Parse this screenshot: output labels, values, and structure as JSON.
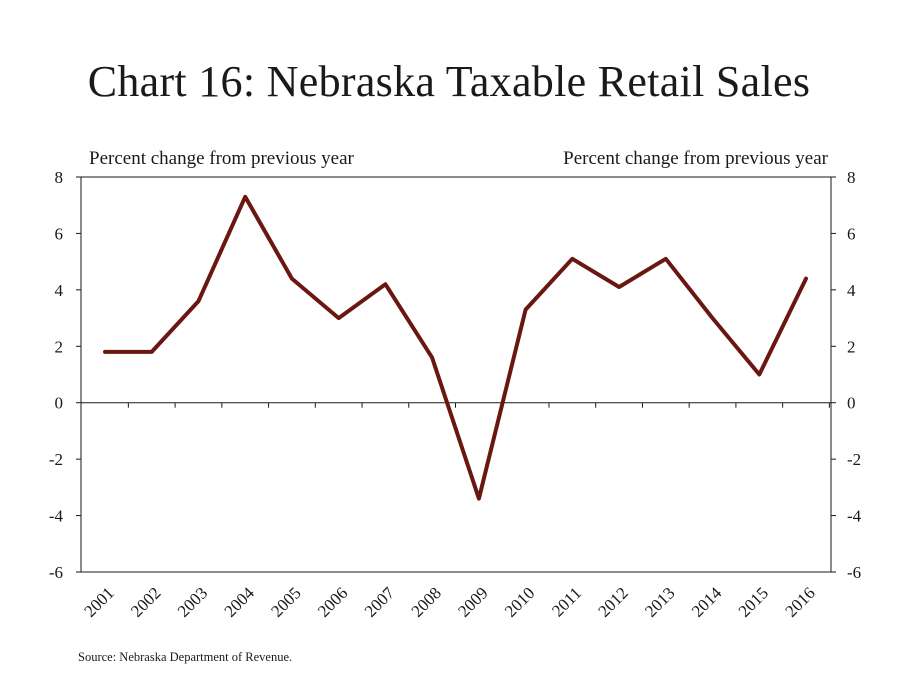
{
  "chart_data": {
    "type": "line",
    "title": "Chart 16: Nebraska Taxable Retail Sales",
    "ylabel_left": "Percent change from previous year",
    "ylabel_right": "Percent change from previous year",
    "ylim": [
      -6,
      8
    ],
    "yticks": [
      "8",
      "6",
      "4",
      "2",
      "0",
      "-2",
      "-4",
      "-6"
    ],
    "categories": [
      "2001",
      "2002",
      "2003",
      "2004",
      "2005",
      "2006",
      "2007",
      "2008",
      "2009",
      "2010",
      "2011",
      "2012",
      "2013",
      "2014",
      "2015",
      "2016"
    ],
    "series": [
      {
        "values": [
          1.8,
          1.8,
          3.6,
          7.3,
          4.4,
          3.0,
          4.2,
          1.6,
          -3.4,
          3.3,
          5.1,
          4.1,
          5.1,
          3.0,
          1.0,
          4.4
        ]
      }
    ],
    "line_color": "#6b1711",
    "grid": false,
    "source": "Source: Nebraska Department of Revenue."
  }
}
